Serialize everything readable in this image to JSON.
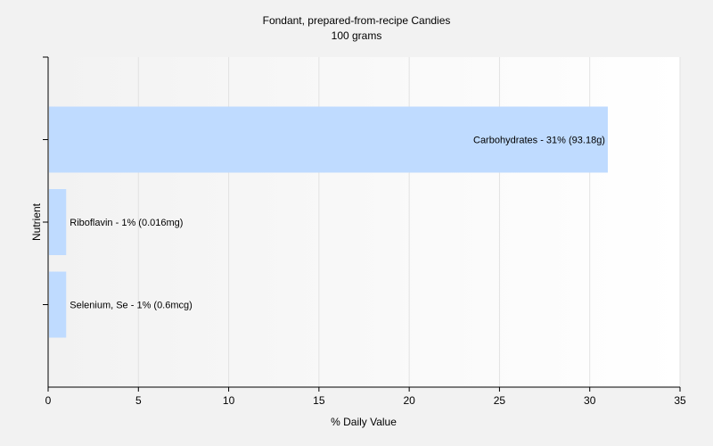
{
  "chart_data": {
    "type": "bar",
    "orientation": "horizontal",
    "title": "Fondant, prepared-from-recipe Candies",
    "subtitle": "100 grams",
    "xlabel": "% Daily Value",
    "ylabel": "Nutrient",
    "xlim": [
      0,
      35
    ],
    "x_ticks": [
      0,
      5,
      10,
      15,
      20,
      25,
      30,
      35
    ],
    "grid": true,
    "bar_color": "#bfdbff",
    "categories": [
      "Carbohydrates",
      "Riboflavin",
      "Selenium, Se"
    ],
    "values": [
      31,
      1,
      1
    ],
    "labels": [
      "Carbohydrates - 31% (93.18g)",
      "Riboflavin - 1% (0.016mg)",
      "Selenium, Se - 1% (0.6mcg)"
    ]
  }
}
